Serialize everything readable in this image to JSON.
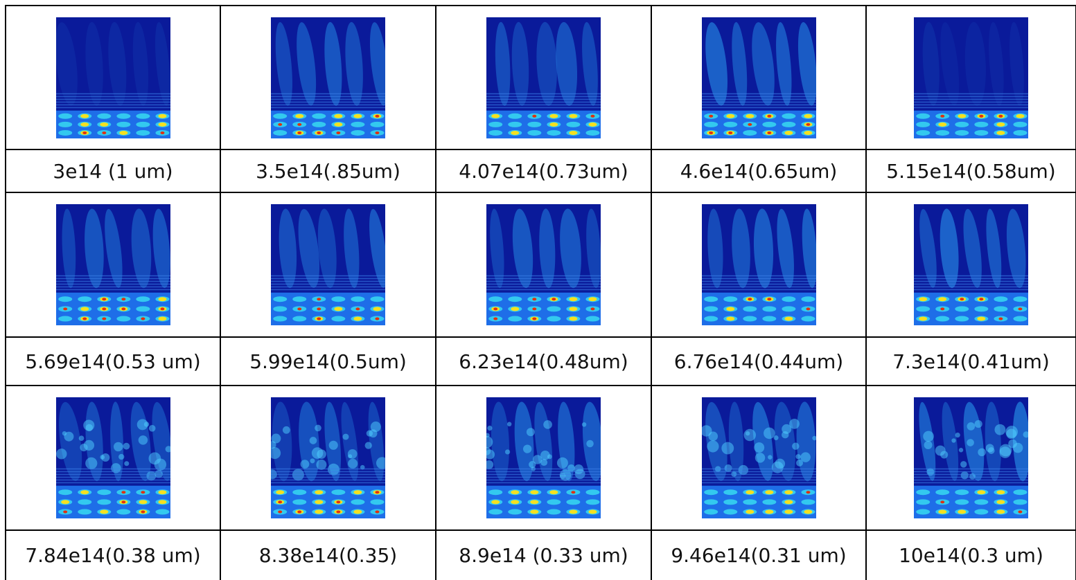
{
  "table": {
    "rows": [
      [
        "3e14 (1 um)",
        "3.5e14(.85um)",
        "4.07e14(0.73um)",
        "4.6e14(0.65um)",
        "5.15e14(0.58um)"
      ],
      [
        "5.69e14(0.53 um)",
        "5.99e14(0.5um)",
        "6.23e14(0.48um)",
        "6.76e14(0.44um)",
        "7.3e14(0.41um)"
      ],
      [
        "7.84e14(0.38 um)",
        "8.38e14(0.35)",
        "8.9e14 (0.33 um)",
        "9.46e14(0.31 um)",
        "10e14(0.3 um)"
      ]
    ]
  }
}
